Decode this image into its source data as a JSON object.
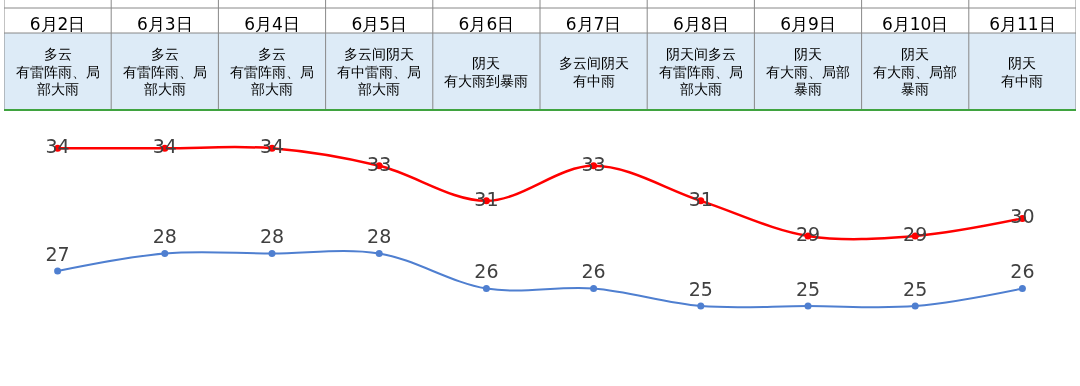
{
  "chart_data": {
    "type": "line",
    "categories": [
      "6月2日",
      "6月3日",
      "6月4日",
      "6月5日",
      "6月6日",
      "6月7日",
      "6月8日",
      "6月9日",
      "6月10日",
      "6月11日"
    ],
    "series": [
      {
        "color": "#ff0000",
        "values": [
          34,
          34,
          34,
          33,
          31,
          33,
          31,
          29,
          29,
          30
        ]
      },
      {
        "color": "#4f7fd0",
        "values": [
          27,
          28,
          28,
          28,
          26,
          26,
          25,
          25,
          25,
          26
        ]
      }
    ],
    "annotations": [
      "多云",
      "有雷阵雨、局部大雨",
      "多云",
      "有雷阵雨、局部大雨",
      "多云",
      "有雷阵雨、局部大雨",
      "多云间阴天",
      "有中雷雨、局部大雨",
      "阴天",
      "有大雨到暴雨",
      "多云间阴天",
      "有中雨",
      "阴天间多云",
      "有雷阵雨、局部大雨",
      "阴天",
      "有大雨、局部暴雨",
      "阴天",
      "有大雨、局部暴雨",
      "阴天",
      "有中雨"
    ],
    "data_labels": true,
    "marker": "circle",
    "line_style": "solid"
  }
}
